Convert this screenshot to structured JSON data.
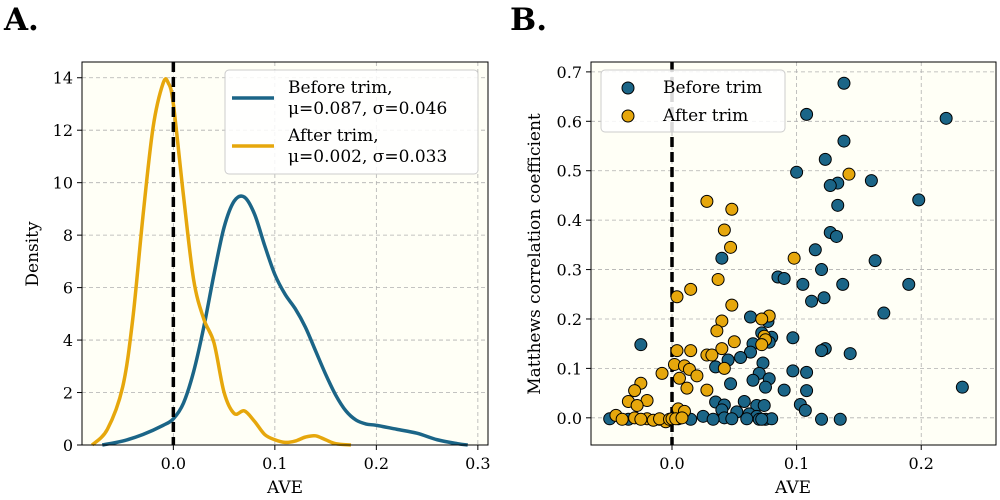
{
  "panels": {
    "left_label": "A.",
    "right_label": "B."
  },
  "colors": {
    "before": "#1b6587",
    "after": "#e6a70c",
    "background": "#fffff6",
    "grid": "#b0b0b0"
  },
  "chart_data": [
    {
      "type": "line",
      "subtype": "density",
      "xlabel": "AVE",
      "ylabel": "Density",
      "xlim": [
        -0.09,
        0.31
      ],
      "ylim": [
        0,
        14.6
      ],
      "xticks": [
        0.0,
        0.1,
        0.2,
        0.3
      ],
      "xtick_labels": [
        "0.0",
        "0.1",
        "0.2",
        "0.3"
      ],
      "yticks": [
        0,
        2,
        4,
        6,
        8,
        10,
        12,
        14
      ],
      "ytick_labels": [
        "0",
        "2",
        "4",
        "6",
        "8",
        "10",
        "12",
        "14"
      ],
      "grid": true,
      "legend_position": "top-right",
      "vline_x": 0.0,
      "series": [
        {
          "name": "Before trim,\nμ=0.087, σ=0.046",
          "legend_lines": [
            "Before trim,",
            "μ=0.087, σ=0.046"
          ],
          "color": "#1b6587",
          "x": [
            -0.07,
            -0.05,
            -0.03,
            -0.01,
            0.0,
            0.01,
            0.02,
            0.03,
            0.04,
            0.05,
            0.06,
            0.07,
            0.08,
            0.09,
            0.1,
            0.11,
            0.12,
            0.13,
            0.14,
            0.15,
            0.16,
            0.17,
            0.18,
            0.19,
            0.2,
            0.22,
            0.24,
            0.26,
            0.28,
            0.29
          ],
          "y": [
            0.0,
            0.15,
            0.4,
            0.75,
            1.0,
            1.6,
            2.8,
            4.5,
            6.5,
            8.3,
            9.3,
            9.45,
            8.8,
            7.6,
            6.5,
            5.75,
            5.2,
            4.5,
            3.6,
            2.7,
            1.9,
            1.3,
            0.95,
            0.8,
            0.75,
            0.6,
            0.45,
            0.2,
            0.05,
            0.0
          ]
        },
        {
          "name": "After trim,\nμ=0.002, σ=0.033",
          "legend_lines": [
            "After trim,",
            "μ=0.002, σ=0.033"
          ],
          "color": "#e6a70c",
          "x": [
            -0.08,
            -0.065,
            -0.05,
            -0.04,
            -0.03,
            -0.02,
            -0.01,
            -0.005,
            0.0,
            0.01,
            0.02,
            0.03,
            0.04,
            0.05,
            0.06,
            0.07,
            0.08,
            0.09,
            0.1,
            0.11,
            0.12,
            0.13,
            0.14,
            0.15,
            0.16,
            0.175
          ],
          "y": [
            0.0,
            0.6,
            2.2,
            4.8,
            8.7,
            12.1,
            13.8,
            13.8,
            13.0,
            9.5,
            6.3,
            4.8,
            3.9,
            2.0,
            1.2,
            1.3,
            0.9,
            0.4,
            0.2,
            0.1,
            0.15,
            0.3,
            0.35,
            0.2,
            0.05,
            0.0
          ]
        }
      ]
    },
    {
      "type": "scatter",
      "xlabel": "AVE",
      "ylabel": "Matthews correlation coefficient",
      "xlim": [
        -0.065,
        0.26
      ],
      "ylim": [
        -0.055,
        0.72
      ],
      "xticks": [
        0.0,
        0.1,
        0.2
      ],
      "xtick_labels": [
        "0.0",
        "0.1",
        "0.2"
      ],
      "yticks": [
        0.0,
        0.1,
        0.2,
        0.3,
        0.4,
        0.5,
        0.6,
        0.7
      ],
      "ytick_labels": [
        "0.0",
        "0.1",
        "0.2",
        "0.3",
        "0.4",
        "0.5",
        "0.6",
        "0.7"
      ],
      "grid": true,
      "legend_position": "top-left",
      "vline_x": 0.0,
      "series": [
        {
          "name": "Before trim",
          "color": "#1b6587",
          "points": [
            [
              0.138,
              0.677
            ],
            [
              0.108,
              0.614
            ],
            [
              0.22,
              0.606
            ],
            [
              0.138,
              0.56
            ],
            [
              0.123,
              0.523
            ],
            [
              0.1,
              0.497
            ],
            [
              0.16,
              0.48
            ],
            [
              0.133,
              0.475
            ],
            [
              0.127,
              0.47
            ],
            [
              0.198,
              0.441
            ],
            [
              0.133,
              0.43
            ],
            [
              0.127,
              0.375
            ],
            [
              0.132,
              0.367
            ],
            [
              0.115,
              0.34
            ],
            [
              0.04,
              0.323
            ],
            [
              0.163,
              0.318
            ],
            [
              0.12,
              0.3
            ],
            [
              0.085,
              0.285
            ],
            [
              0.09,
              0.282
            ],
            [
              0.105,
              0.27
            ],
            [
              0.137,
              0.27
            ],
            [
              0.19,
              0.27
            ],
            [
              0.122,
              0.243
            ],
            [
              0.112,
              0.236
            ],
            [
              0.17,
              0.212
            ],
            [
              0.063,
              0.204
            ],
            [
              0.077,
              0.195
            ],
            [
              0.072,
              0.172
            ],
            [
              0.08,
              0.163
            ],
            [
              0.097,
              0.162
            ],
            [
              0.078,
              0.153
            ],
            [
              0.065,
              0.15
            ],
            [
              -0.025,
              0.148
            ],
            [
              0.123,
              0.14
            ],
            [
              0.12,
              0.136
            ],
            [
              0.143,
              0.13
            ],
            [
              0.063,
              0.133
            ],
            [
              0.055,
              0.122
            ],
            [
              0.073,
              0.111
            ],
            [
              0.045,
              0.117
            ],
            [
              0.035,
              0.103
            ],
            [
              0.097,
              0.095
            ],
            [
              0.108,
              0.092
            ],
            [
              0.07,
              0.09
            ],
            [
              0.078,
              0.079
            ],
            [
              0.065,
              0.076
            ],
            [
              0.047,
              0.069
            ],
            [
              0.075,
              0.062
            ],
            [
              0.233,
              0.062
            ],
            [
              0.09,
              0.056
            ],
            [
              0.108,
              0.055
            ],
            [
              0.035,
              0.032
            ],
            [
              0.058,
              0.033
            ],
            [
              0.042,
              0.026
            ],
            [
              0.068,
              0.025
            ],
            [
              0.074,
              0.025
            ],
            [
              0.103,
              0.027
            ],
            [
              0.04,
              0.016
            ],
            [
              0.052,
              0.012
            ],
            [
              0.107,
              0.015
            ],
            [
              0.062,
              0.008
            ],
            [
              0.068,
              0.003
            ],
            [
              0.025,
              0.003
            ],
            [
              0.042,
              0.0
            ],
            [
              0.06,
              -0.002
            ],
            [
              0.07,
              -0.003
            ],
            [
              0.075,
              -0.003
            ],
            [
              0.08,
              -0.002
            ],
            [
              0.12,
              -0.003
            ],
            [
              0.135,
              -0.003
            ],
            [
              -0.05,
              -0.002
            ],
            [
              -0.035,
              -0.003
            ],
            [
              -0.01,
              -0.003
            ],
            [
              0.005,
              -0.002
            ],
            [
              0.015,
              -0.003
            ],
            [
              0.033,
              -0.003
            ],
            [
              0.048,
              -0.002
            ],
            [
              0.072,
              -0.003
            ]
          ]
        },
        {
          "name": "After trim",
          "color": "#e6a70c",
          "points": [
            [
              0.142,
              0.493
            ],
            [
              0.028,
              0.438
            ],
            [
              0.048,
              0.422
            ],
            [
              0.042,
              0.38
            ],
            [
              0.047,
              0.345
            ],
            [
              0.098,
              0.323
            ],
            [
              0.037,
              0.28
            ],
            [
              0.015,
              0.26
            ],
            [
              0.004,
              0.245
            ],
            [
              0.048,
              0.228
            ],
            [
              0.04,
              0.196
            ],
            [
              0.078,
              0.206
            ],
            [
              0.072,
              0.2
            ],
            [
              0.036,
              0.176
            ],
            [
              0.074,
              0.165
            ],
            [
              0.075,
              0.158
            ],
            [
              0.072,
              0.148
            ],
            [
              0.05,
              0.154
            ],
            [
              0.04,
              0.14
            ],
            [
              0.004,
              0.136
            ],
            [
              0.015,
              0.136
            ],
            [
              0.028,
              0.127
            ],
            [
              0.032,
              0.127
            ],
            [
              0.002,
              0.108
            ],
            [
              0.01,
              0.105
            ],
            [
              0.042,
              0.1
            ],
            [
              0.014,
              0.098
            ],
            [
              -0.008,
              0.09
            ],
            [
              0.02,
              0.085
            ],
            [
              0.006,
              0.08
            ],
            [
              -0.025,
              0.07
            ],
            [
              -0.03,
              0.055
            ],
            [
              0.028,
              0.056
            ],
            [
              0.012,
              0.06
            ],
            [
              -0.035,
              0.033
            ],
            [
              -0.02,
              0.035
            ],
            [
              -0.028,
              0.025
            ],
            [
              0.005,
              0.018
            ],
            [
              0.01,
              0.013
            ],
            [
              -0.045,
              0.005
            ],
            [
              -0.03,
              0.0
            ],
            [
              -0.02,
              -0.002
            ],
            [
              -0.015,
              -0.005
            ],
            [
              -0.005,
              -0.008
            ],
            [
              -0.04,
              -0.003
            ],
            [
              -0.025,
              -0.003
            ],
            [
              -0.01,
              -0.002
            ],
            [
              -0.002,
              -0.003
            ],
            [
              0.0,
              -0.002
            ],
            [
              0.003,
              -0.002
            ],
            [
              0.008,
              0.0
            ]
          ]
        }
      ]
    }
  ]
}
